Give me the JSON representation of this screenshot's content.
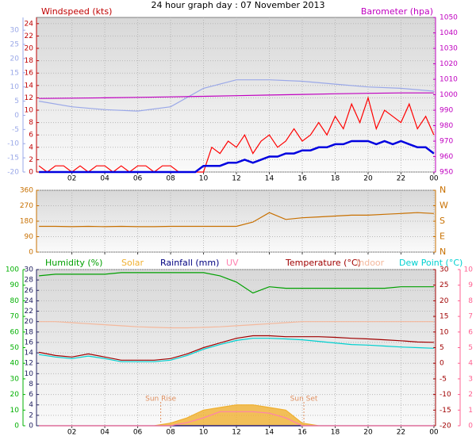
{
  "chart_data": [
    {
      "type": "line",
      "title": "24 hour graph day : 07 November 2013",
      "ylabel": "Windspeed (kts)",
      "y2label": "Barometer (hpa)",
      "xlim": [
        -0.15,
        24.1
      ],
      "xticks": [
        {
          "value": 2,
          "label": "02"
        },
        {
          "value": 4,
          "label": "04"
        },
        {
          "value": 6,
          "label": "06"
        },
        {
          "value": 8,
          "label": "08"
        },
        10,
        12,
        14,
        16,
        18,
        20,
        22,
        {
          "value": 24,
          "label": "00"
        }
      ],
      "ylim": [
        0,
        25
      ],
      "yticks": [
        0,
        2,
        4,
        6,
        8,
        10,
        12,
        14,
        16,
        18,
        20,
        22,
        24
      ],
      "y2lim": [
        950,
        1050
      ],
      "y2ticks": [
        950,
        960,
        970,
        980,
        990,
        1000,
        1010,
        1020,
        1030,
        1040,
        1050
      ],
      "y3lim": [
        -20,
        34.5
      ],
      "y3ticks": [
        -20,
        -15,
        -10,
        -5,
        0,
        5,
        10,
        15,
        20,
        25,
        30
      ],
      "axis_colors": {
        "y": "#c00000",
        "y2": "#c000c0",
        "y3": "#9aa8e8"
      },
      "grid": true,
      "x": [
        0,
        0.5,
        1,
        1.5,
        2,
        2.5,
        3,
        3.5,
        4,
        4.5,
        5,
        5.5,
        6,
        6.5,
        7,
        7.5,
        8,
        8.5,
        9,
        9.5,
        10,
        10.5,
        11,
        11.5,
        12,
        12.5,
        13,
        13.5,
        14,
        14.5,
        15,
        15.5,
        16,
        16.5,
        17,
        17.5,
        18,
        18.5,
        19,
        19.5,
        20,
        20.5,
        21,
        21.5,
        22,
        22.5,
        23,
        23.5,
        24
      ],
      "series": [
        {
          "color": "#9aa8e8",
          "axis": "y3",
          "x": [
            0,
            2,
            4,
            6,
            8,
            10,
            12,
            14,
            16,
            18,
            20,
            22,
            24
          ],
          "values": [
            5,
            3,
            2,
            1.5,
            3,
            9.5,
            12.5,
            12.5,
            12,
            11,
            10,
            9.5,
            8.5
          ]
        },
        {
          "color": "#c000c0",
          "axis": "y2",
          "x": [
            0,
            2,
            4,
            6,
            8,
            10,
            12,
            14,
            16,
            18,
            20,
            22,
            24
          ],
          "values": [
            997.6,
            997.8,
            998,
            998.3,
            998.6,
            999,
            999.4,
            999.8,
            1000.2,
            1000.6,
            1000.9,
            1001.2,
            1001.2
          ]
        },
        {
          "color": "#ff0000",
          "axis": "y",
          "values": [
            1,
            0,
            1,
            1,
            0,
            1,
            0,
            1,
            1,
            0,
            1,
            0,
            1,
            1,
            0,
            1,
            1,
            0,
            0,
            0,
            0,
            4,
            3,
            5,
            4,
            6,
            3,
            5,
            6,
            4,
            5,
            7,
            5,
            6,
            8,
            6,
            9,
            7,
            11,
            8,
            12,
            7,
            10,
            9,
            8,
            11,
            7,
            9,
            6
          ]
        },
        {
          "color": "#0000e0",
          "axis": "y",
          "width": 2.5,
          "values": [
            0,
            0,
            0,
            0,
            0,
            0,
            0,
            0,
            0,
            0,
            0,
            0,
            0,
            0,
            0,
            0,
            0,
            0,
            0,
            0,
            1,
            1,
            1,
            1.5,
            1.5,
            2,
            1.5,
            2,
            2.5,
            2.5,
            3,
            3,
            3.5,
            3.5,
            4,
            4,
            4.5,
            4.5,
            5,
            5,
            5,
            4.5,
            5,
            4.5,
            5,
            4.5,
            4,
            4,
            3
          ]
        }
      ]
    },
    {
      "type": "line",
      "xlim": [
        -0.15,
        24.1
      ],
      "xticks": [
        2,
        4,
        6,
        8,
        10,
        12,
        14,
        16,
        18,
        20,
        22,
        24
      ],
      "ylim": [
        0,
        360
      ],
      "yticks": [
        0,
        90,
        180,
        270,
        360
      ],
      "y2lim": [
        0,
        360
      ],
      "y2ticks": [
        {
          "value": 0,
          "label": "N"
        },
        {
          "value": 90,
          "label": "E"
        },
        {
          "value": 180,
          "label": "S"
        },
        {
          "value": 270,
          "label": "W"
        },
        {
          "value": 360,
          "label": "N"
        }
      ],
      "axis_colors": {
        "y": "#c87000",
        "y2": "#c87000"
      },
      "grid": true,
      "x": [
        0,
        1,
        2,
        3,
        4,
        5,
        6,
        7,
        8,
        9,
        10,
        11,
        12,
        13,
        14,
        15,
        16,
        17,
        18,
        19,
        20,
        21,
        22,
        23,
        24
      ],
      "series": [
        {
          "color": "#c87000",
          "axis": "y",
          "values": [
            150,
            150,
            148,
            150,
            148,
            150,
            148,
            148,
            150,
            150,
            150,
            150,
            150,
            175,
            230,
            190,
            200,
            205,
            210,
            215,
            215,
            220,
            225,
            230,
            225
          ]
        }
      ]
    },
    {
      "type": "line",
      "xlim": [
        -0.15,
        24.1
      ],
      "xticks": [
        {
          "value": 2,
          "label": "02"
        },
        {
          "value": 4,
          "label": "04"
        },
        {
          "value": 6,
          "label": "06"
        },
        {
          "value": 8,
          "label": "08"
        },
        10,
        12,
        14,
        16,
        18,
        20,
        22,
        {
          "value": 24,
          "label": "00"
        }
      ],
      "ylim": [
        0,
        30
      ],
      "yticks": [
        0,
        2,
        4,
        6,
        8,
        10,
        12,
        14,
        16,
        18,
        20,
        22,
        24,
        26,
        28,
        30
      ],
      "y2lim": [
        -20,
        30
      ],
      "y2ticks": [
        -20,
        -15,
        -10,
        -5,
        0,
        5,
        10,
        15,
        20,
        25,
        30
      ],
      "y3lim": [
        0,
        100
      ],
      "y3ticks": [
        0,
        10,
        20,
        30,
        40,
        50,
        60,
        70,
        80,
        90,
        100
      ],
      "y4lim": [
        0,
        10
      ],
      "y4ticks": [
        0,
        1,
        2,
        3,
        4,
        5,
        6,
        7,
        8,
        9,
        10
      ],
      "axis_colors": {
        "y": "#202060",
        "y2": "#a00000",
        "y3": "#00b000",
        "y4": "#ff6090"
      },
      "grid": true,
      "annotations": [
        {
          "x": 7.4,
          "text": "Sun Rise"
        },
        {
          "x": 16.1,
          "text": "Sun Set"
        }
      ],
      "x": [
        0,
        1,
        2,
        3,
        4,
        5,
        6,
        7,
        8,
        9,
        10,
        11,
        12,
        13,
        14,
        15,
        16,
        17,
        18,
        19,
        20,
        21,
        22,
        23,
        24
      ],
      "series": [
        {
          "name": "Humidity (%)",
          "color": "#00a000",
          "axis": "y3",
          "values": [
            96,
            97,
            97,
            97,
            97,
            98,
            98,
            98,
            98,
            98,
            98,
            96,
            92,
            85,
            89,
            88,
            88,
            88,
            88,
            88,
            88,
            88,
            89,
            89,
            89
          ]
        },
        {
          "name": "Solar",
          "color": "#f0b030",
          "axis": "y",
          "fill": true,
          "values": [
            0,
            0,
            0,
            0,
            0,
            0,
            0,
            0,
            0.5,
            1.5,
            3,
            3.5,
            4,
            4,
            3.5,
            3,
            0.5,
            0,
            0,
            0,
            0,
            0,
            0,
            0,
            0
          ]
        },
        {
          "name": "Rainfall (mm)",
          "color": "#000080",
          "axis": "y",
          "values": [
            0,
            0,
            0,
            0,
            0,
            0,
            0,
            0,
            0,
            0,
            0,
            0,
            0,
            0,
            0,
            0,
            0,
            0,
            0,
            0,
            0,
            0,
            0,
            0,
            0
          ]
        },
        {
          "name": "UV",
          "color": "#ff80b0",
          "axis": "y4",
          "values": [
            0,
            0,
            0,
            0,
            0,
            0,
            0,
            0,
            0,
            0.2,
            0.5,
            0.9,
            0.9,
            0.9,
            0.8,
            0.5,
            0,
            0,
            0,
            0,
            0,
            0,
            0,
            0,
            0
          ]
        },
        {
          "name": "Temperature (°C)",
          "color": "#a00000",
          "axis": "y2",
          "values": [
            3.5,
            2.5,
            2,
            3,
            2,
            1,
            1,
            1,
            1.5,
            3,
            5,
            6.5,
            8,
            8.8,
            8.8,
            8.5,
            8.5,
            8.5,
            8.3,
            8,
            7.8,
            7.5,
            7.2,
            6.8,
            6.7
          ]
        },
        {
          "name": "Indoor",
          "color": "#f4b89c",
          "axis": "y",
          "values": [
            20,
            20,
            19.8,
            19.6,
            19.4,
            19.2,
            19,
            18.9,
            18.8,
            18.8,
            18.9,
            19,
            19.2,
            19.4,
            19.6,
            19.8,
            20,
            20,
            20,
            20,
            20,
            20,
            20,
            20,
            20
          ]
        },
        {
          "name": "Dew Point (°C)",
          "color": "#00d0d0",
          "axis": "y2",
          "values": [
            2.8,
            2,
            1.5,
            2.3,
            1.5,
            0.5,
            0.5,
            0.5,
            1,
            2.5,
            4.5,
            6,
            7.3,
            8,
            8,
            7.8,
            7.5,
            7,
            6.5,
            6,
            5.8,
            5.5,
            5.2,
            5,
            4.8
          ]
        }
      ]
    }
  ]
}
